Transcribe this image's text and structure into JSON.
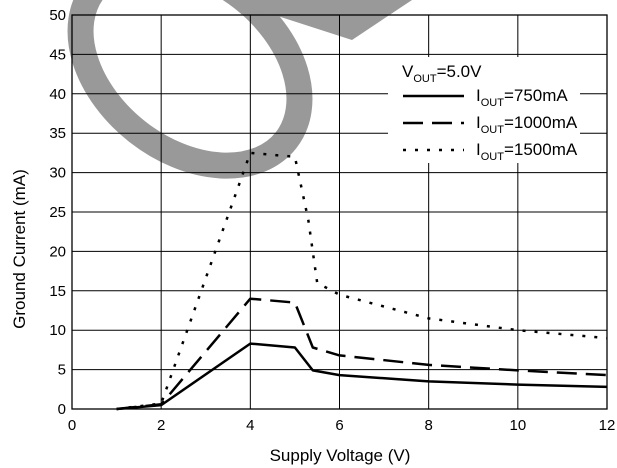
{
  "chart_data": {
    "type": "line",
    "xlabel": "Supply Voltage (V)",
    "ylabel": "Ground Current (mA)",
    "xlim": [
      0,
      12
    ],
    "ylim": [
      0,
      50
    ],
    "xticks": [
      0,
      2,
      4,
      6,
      8,
      10,
      12
    ],
    "yticks": [
      0,
      5,
      10,
      15,
      20,
      25,
      30,
      35,
      40,
      45,
      50
    ],
    "grid": true,
    "legend_placement": "top-right",
    "legend_title": {
      "main": "V",
      "sub": "OUT",
      "rest": "=5.0V"
    },
    "series": [
      {
        "name": "IOUT=750mA",
        "legend": {
          "main": "I",
          "sub": "OUT",
          "rest": "=750mA"
        },
        "style": "solid",
        "x": [
          1,
          2,
          4,
          5,
          5.4,
          6,
          8,
          10,
          12
        ],
        "y": [
          0,
          0.5,
          8.3,
          7.8,
          4.9,
          4.3,
          3.5,
          3.1,
          2.8
        ]
      },
      {
        "name": "IOUT=1000mA",
        "legend": {
          "main": "I",
          "sub": "OUT",
          "rest": "=1000mA"
        },
        "style": "dashed",
        "x": [
          1,
          2,
          4,
          5,
          5.4,
          6,
          8,
          10,
          12
        ],
        "y": [
          0,
          0.6,
          14,
          13.5,
          7.8,
          6.8,
          5.6,
          4.9,
          4.3
        ]
      },
      {
        "name": "IOUT=1500mA",
        "legend": {
          "main": "I",
          "sub": "OUT",
          "rest": "=1500mA"
        },
        "style": "dotted",
        "x": [
          1,
          2,
          4,
          5,
          5.3,
          5.5,
          6,
          8,
          10,
          12
        ],
        "y": [
          0,
          0.7,
          32.5,
          32,
          24,
          16,
          14.5,
          11.5,
          10,
          9
        ]
      }
    ],
    "colors": {
      "line": "#000000",
      "grid": "#000000",
      "watermark": "#999999"
    }
  }
}
